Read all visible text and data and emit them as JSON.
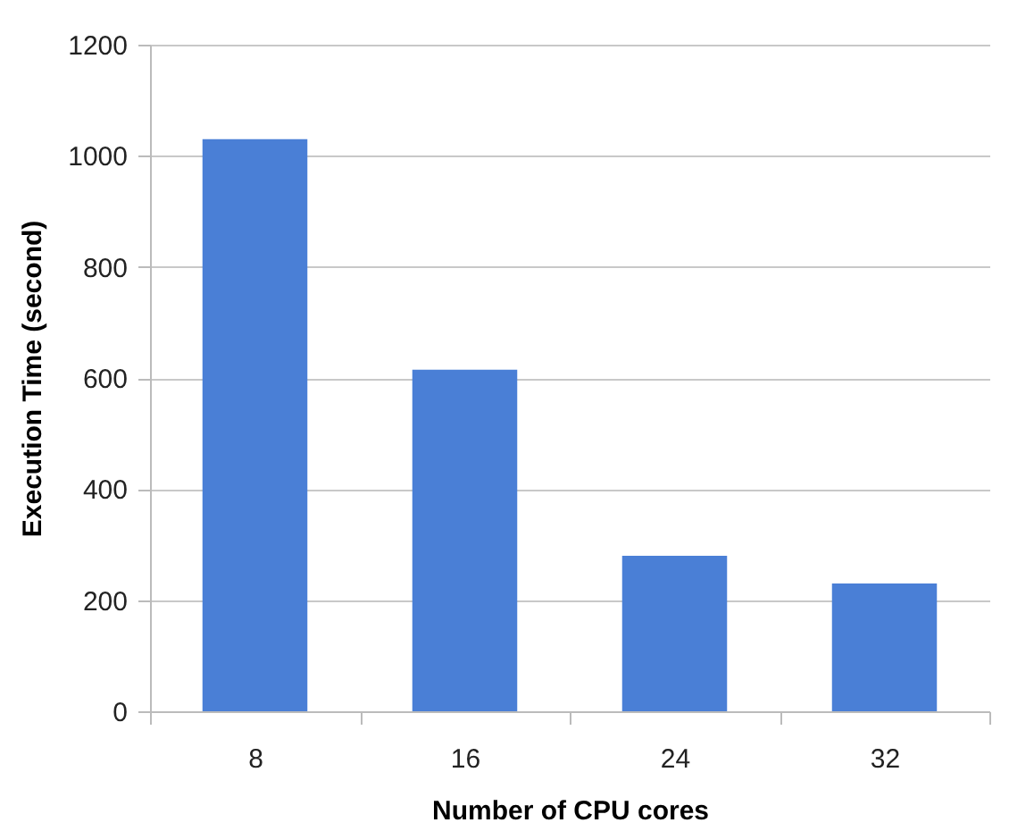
{
  "chart_data": {
    "type": "bar",
    "xlabel": "Number of CPU cores",
    "ylabel": "Execution Time (second)",
    "categories": [
      "8",
      "16",
      "24",
      "32"
    ],
    "values": [
      1030,
      615,
      280,
      230
    ],
    "color": "#4a7fd6",
    "ylim": [
      0,
      1200
    ],
    "yticks": [
      0,
      200,
      400,
      600,
      800,
      1000,
      1200
    ],
    "grid": "y"
  }
}
